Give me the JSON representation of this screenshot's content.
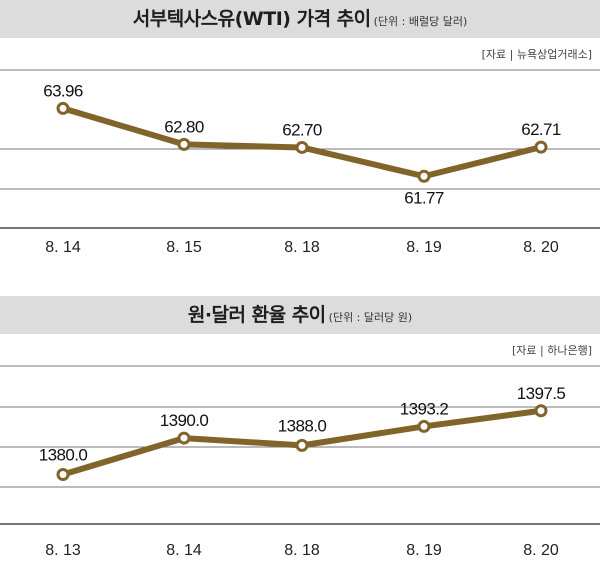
{
  "chart_data": [
    {
      "type": "line",
      "title": "서부텍사스유(WTI) 가격 추이",
      "subtitle": "(단위 : 배럴당 달러)",
      "source": "[자료 | 뉴욕상업거래소]",
      "categories": [
        "8. 14",
        "8. 15",
        "8. 18",
        "8. 19",
        "8. 20"
      ],
      "series": [
        {
          "values": [
            63.96,
            62.8,
            62.7,
            61.77,
            62.71
          ]
        }
      ],
      "data_labels": [
        "63.96",
        "62.80",
        "62.70",
        "61.77",
        "62.71"
      ],
      "ylim": [
        60.1,
        65.2
      ],
      "grid": true,
      "line_color": "#80642a"
    },
    {
      "type": "line",
      "title": "원·달러 환율 추이",
      "subtitle": "(단위 : 달러당 원)",
      "source": "[자료 | 하나은행]",
      "categories": [
        "8. 13",
        "8. 14",
        "8. 18",
        "8. 19",
        "8. 20"
      ],
      "series": [
        {
          "values": [
            1380.0,
            1390.0,
            1388.0,
            1393.2,
            1397.5
          ]
        }
      ],
      "data_labels": [
        "1380.0",
        "1390.0",
        "1388.0",
        "1393.2",
        "1397.5"
      ],
      "ylim": [
        1366.4,
        1409.8
      ],
      "grid": true,
      "line_color": "#80642a"
    }
  ]
}
